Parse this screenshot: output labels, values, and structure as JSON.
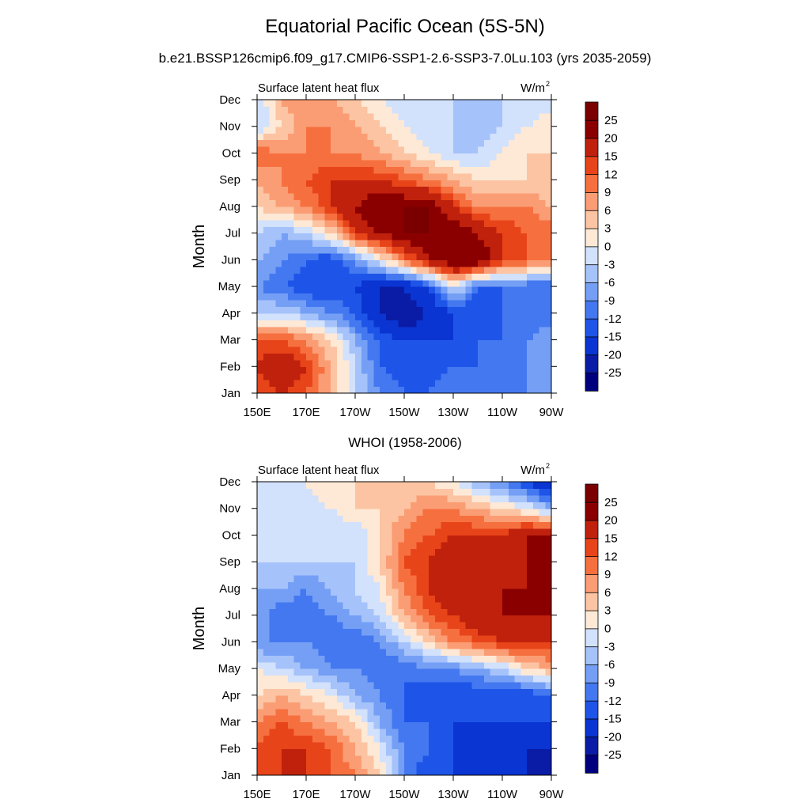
{
  "figure": {
    "title": "Equatorial Pacific Ocean (5S-5N)",
    "subtitle": "b.e21.BSSP126cmip6.f09_g17.CMIP6-SSP1-2.6-SSP3-7.0Lu.103 (yrs 2035-2059)"
  },
  "chart_data": [
    {
      "type": "heatmap",
      "title": "",
      "left_label": "Surface latent heat flux",
      "units_label": "W/m",
      "units_superscript": "2",
      "ylabel": "Month",
      "xlabel": "",
      "x_ticks": [
        "150E",
        "170E",
        "170W",
        "150W",
        "130W",
        "110W",
        "90W"
      ],
      "y_ticks": [
        "Jan",
        "Feb",
        "Mar",
        "Apr",
        "May",
        "Jun",
        "Jul",
        "Aug",
        "Sep",
        "Oct",
        "Nov",
        "Dec"
      ],
      "x": [
        150,
        160,
        170,
        180,
        190,
        200,
        210,
        220,
        230,
        240,
        250,
        260,
        270
      ],
      "y": [
        1,
        2,
        3,
        4,
        5,
        6,
        7,
        8,
        9,
        10,
        11,
        12
      ],
      "z": [
        [
          12,
          15,
          12,
          6,
          -3,
          -9,
          -12,
          -12,
          -9,
          -9,
          -9,
          -9,
          -9
        ],
        [
          15,
          20,
          15,
          6,
          -3,
          -12,
          -15,
          -15,
          -12,
          -12,
          -12,
          -9,
          -9
        ],
        [
          12,
          12,
          9,
          3,
          -6,
          -12,
          -15,
          -15,
          -15,
          -12,
          -12,
          -9,
          -6
        ],
        [
          -3,
          -3,
          -6,
          -9,
          -12,
          -20,
          -25,
          -20,
          -15,
          -15,
          -12,
          -12,
          -12
        ],
        [
          -9,
          -12,
          -15,
          -15,
          -15,
          -20,
          -20,
          -15,
          0,
          -12,
          -12,
          -12,
          -12
        ],
        [
          -6,
          -9,
          -12,
          -15,
          -9,
          0,
          9,
          20,
          25,
          25,
          15,
          12,
          9
        ],
        [
          -3,
          -6,
          -3,
          3,
          15,
          20,
          25,
          25,
          25,
          20,
          15,
          12,
          12
        ],
        [
          3,
          6,
          9,
          15,
          20,
          25,
          25,
          25,
          15,
          9,
          9,
          9,
          6
        ],
        [
          6,
          9,
          12,
          15,
          15,
          15,
          12,
          9,
          6,
          3,
          3,
          3,
          3
        ],
        [
          12,
          9,
          9,
          9,
          9,
          6,
          3,
          0,
          -3,
          -3,
          0,
          3,
          3
        ],
        [
          -3,
          3,
          9,
          9,
          6,
          3,
          0,
          -3,
          -3,
          -6,
          -3,
          0,
          3
        ],
        [
          -3,
          6,
          9,
          6,
          3,
          0,
          -3,
          -3,
          -3,
          -3,
          -3,
          -3,
          -3
        ]
      ]
    },
    {
      "type": "heatmap",
      "title": "WHOI (1958-2006)",
      "left_label": "Surface latent heat flux",
      "units_label": "W/m",
      "units_superscript": "2",
      "ylabel": "Month",
      "xlabel": "",
      "x_ticks": [
        "150E",
        "170E",
        "170W",
        "150W",
        "130W",
        "110W",
        "90W"
      ],
      "y_ticks": [
        "Jan",
        "Feb",
        "Mar",
        "Apr",
        "May",
        "Jun",
        "Jul",
        "Aug",
        "Sep",
        "Oct",
        "Nov",
        "Dec"
      ],
      "x": [
        150,
        160,
        170,
        180,
        190,
        200,
        210,
        220,
        230,
        240,
        250,
        260,
        270
      ],
      "y": [
        1,
        2,
        3,
        4,
        5,
        6,
        7,
        8,
        9,
        10,
        11,
        12
      ],
      "z": [
        [
          12,
          15,
          15,
          12,
          9,
          3,
          -9,
          -15,
          -15,
          -20,
          -20,
          -20,
          -25
        ],
        [
          12,
          15,
          15,
          12,
          6,
          0,
          -9,
          -12,
          -15,
          -20,
          -20,
          -20,
          -20
        ],
        [
          9,
          12,
          9,
          6,
          3,
          -6,
          -12,
          -12,
          -15,
          -15,
          -15,
          -15,
          -15
        ],
        [
          3,
          6,
          3,
          0,
          -6,
          -9,
          -12,
          -15,
          -15,
          -15,
          -15,
          -15,
          -12
        ],
        [
          0,
          -3,
          -6,
          -9,
          -9,
          -12,
          -12,
          -9,
          -9,
          -6,
          -3,
          3,
          6
        ],
        [
          -9,
          -9,
          -9,
          -12,
          -12,
          -9,
          -3,
          3,
          9,
          12,
          15,
          15,
          15
        ],
        [
          -6,
          -12,
          -12,
          -9,
          -6,
          -3,
          6,
          12,
          15,
          20,
          20,
          20,
          20
        ],
        [
          -6,
          -6,
          -9,
          -6,
          -3,
          0,
          9,
          15,
          20,
          15,
          20,
          20,
          20
        ],
        [
          -3,
          -3,
          -3,
          -3,
          -3,
          3,
          12,
          15,
          20,
          15,
          15,
          20,
          25
        ],
        [
          -3,
          -3,
          -3,
          -3,
          -3,
          3,
          9,
          12,
          15,
          15,
          15,
          20,
          20
        ],
        [
          0,
          -3,
          -3,
          0,
          3,
          3,
          6,
          9,
          9,
          6,
          3,
          0,
          -6
        ],
        [
          -3,
          -3,
          0,
          3,
          3,
          3,
          3,
          3,
          0,
          -6,
          -9,
          -15,
          -20
        ]
      ]
    }
  ],
  "colorbar": {
    "labels": [
      "25",
      "20",
      "15",
      "12",
      "9",
      "6",
      "3",
      "0",
      "-3",
      "-6",
      "-9",
      "-12",
      "-15",
      "-20",
      "-25"
    ],
    "levels": [
      -25,
      -20,
      -15,
      -12,
      -9,
      -6,
      -3,
      0,
      3,
      6,
      9,
      12,
      15,
      20,
      25
    ],
    "colors": [
      "#00007f",
      "#0a1ca5",
      "#0a35d2",
      "#1e55e8",
      "#4478f0",
      "#749ff5",
      "#a5c2fa",
      "#d2e1fc",
      "#fde9d6",
      "#fcc4a2",
      "#fb9d74",
      "#f6703f",
      "#e8441a",
      "#c0210d",
      "#8a0000",
      "#7a0000"
    ]
  }
}
